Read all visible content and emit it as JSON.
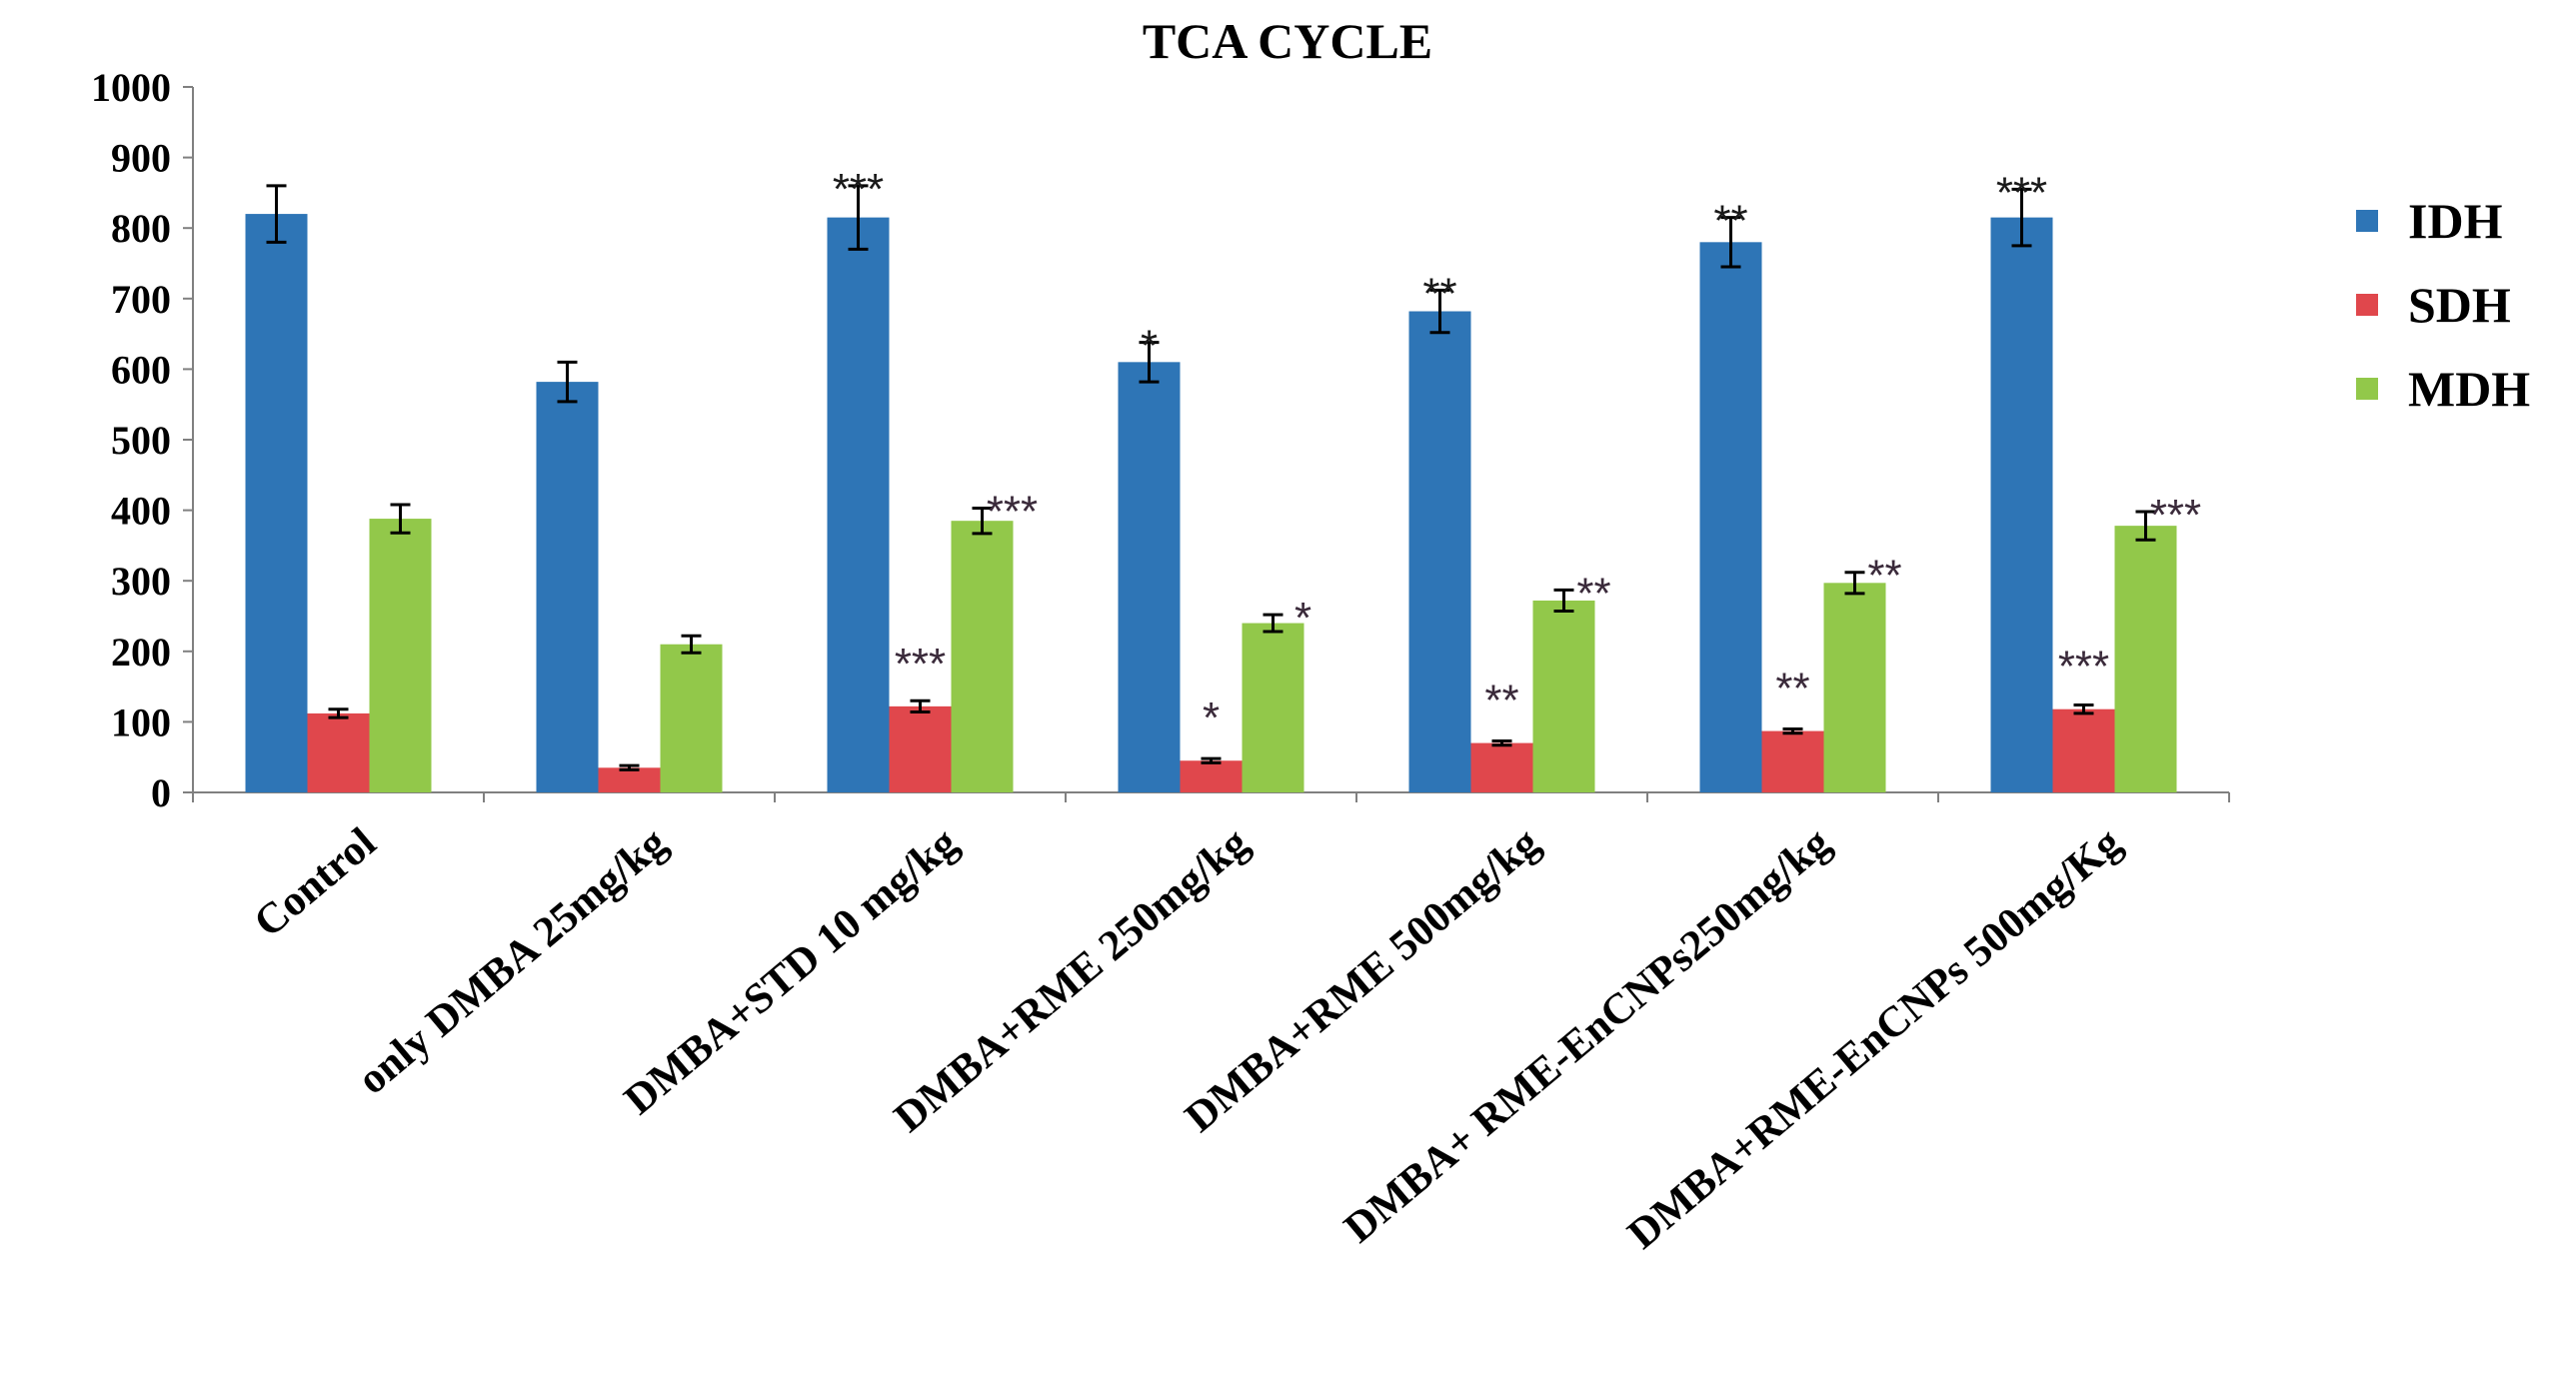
{
  "chart_data": {
    "type": "bar",
    "title": "TCA CYCLE",
    "xlabel": "",
    "ylabel": "",
    "ylim": [
      0,
      1000
    ],
    "ytick_step": 100,
    "yticks": [
      "0",
      "100",
      "200",
      "300",
      "400",
      "500",
      "600",
      "700",
      "800",
      "900",
      "1000"
    ],
    "grid": false,
    "legend_position": "right",
    "categories": [
      "Control",
      "only DMBA 25mg/kg",
      "DMBA+STD 10 mg/kg",
      "DMBA+RME 250mg/kg",
      "DMBA+RME 500mg/kg",
      "DMBA+ RME-EnCNPs250mg/kg",
      "DMBA+RME-EnCNPs 500mg/Kg"
    ],
    "series": [
      {
        "name": "IDH",
        "color": "#2E75B6",
        "values": [
          820,
          582,
          815,
          610,
          682,
          780,
          815
        ],
        "errors": [
          40,
          28,
          45,
          28,
          30,
          35,
          40
        ],
        "significance": [
          "",
          "",
          "***",
          "*",
          "**",
          "**",
          "***"
        ]
      },
      {
        "name": "SDH",
        "color": "#E0474C",
        "values": [
          112,
          35,
          122,
          45,
          70,
          87,
          118
        ],
        "errors": [
          6,
          3,
          8,
          3,
          3,
          3,
          6
        ],
        "significance": [
          "",
          "",
          "***",
          "*",
          "**",
          "**",
          "***"
        ]
      },
      {
        "name": "MDH",
        "color": "#92C84A",
        "values": [
          388,
          210,
          385,
          240,
          272,
          297,
          378
        ],
        "errors": [
          20,
          12,
          18,
          12,
          15,
          15,
          20
        ],
        "significance": [
          "",
          "",
          "***",
          "*",
          "**",
          "**",
          "***"
        ]
      }
    ]
  }
}
